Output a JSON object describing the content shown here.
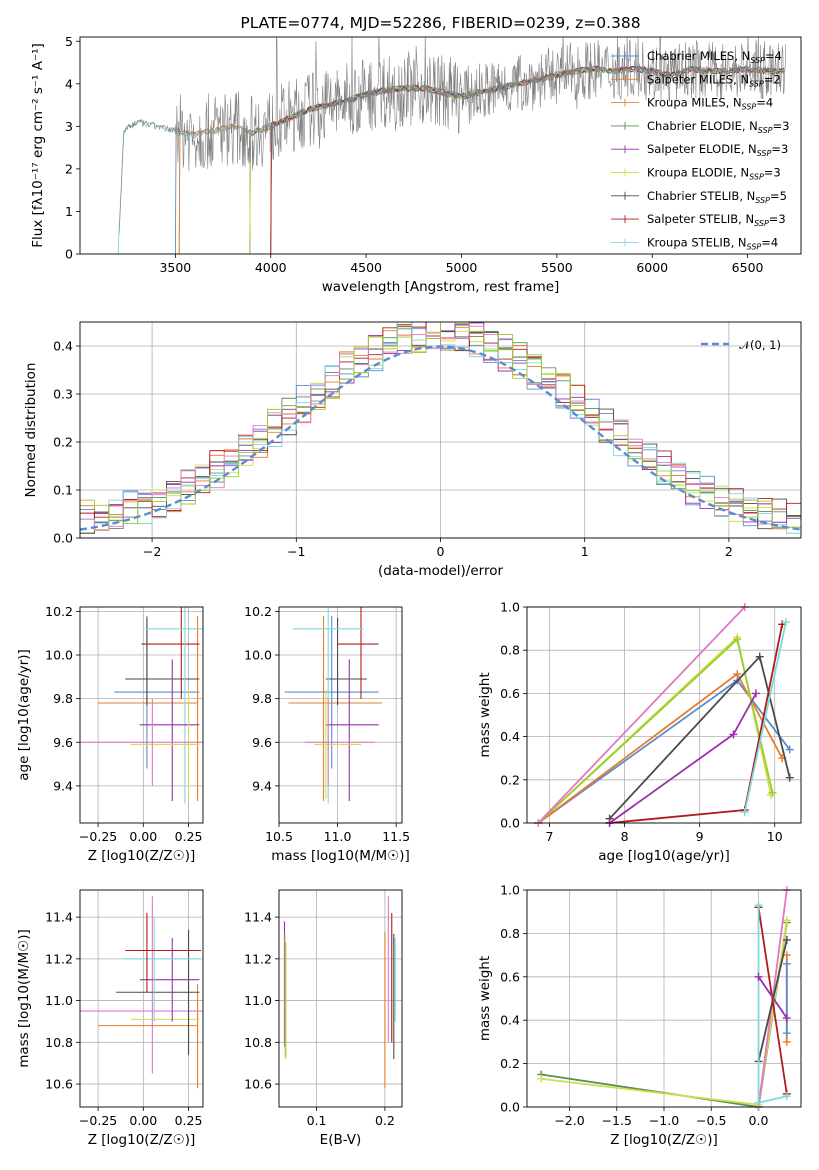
{
  "colors": {
    "Chabrier MILES": "#5b8bd0",
    "Salpeter MILES": "#e87d2b",
    "Kroupa MILES": "#e8832e",
    "Chabrier ELODIE": "#5a8f5a",
    "Salpeter ELODIE": "#9b2fae",
    "Kroupa ELODIE": "#cfe04a",
    "Chabrier STELIB": "#4a4a4a",
    "Salpeter STELIB": "#b01c1c",
    "Kroupa STELIB": "#7fd8dc",
    "extra_pink": "#e377c2",
    "extra_green": "#9acd32",
    "spectrum": "#7f7f7f",
    "normal_curve": "#5b8bd0",
    "grid": "#b0b0b0"
  },
  "chart_data": [
    {
      "id": "spectrum",
      "type": "line",
      "title": "PLATE=0774, MJD=52286, FIBERID=0239, z=0.388",
      "xlabel": "wavelength [Angstrom, rest frame]",
      "ylabel": "Flux [fλ10⁻¹⁷ erg cm⁻² s⁻¹ A⁻¹]",
      "xlim": [
        3000,
        6780
      ],
      "ylim": [
        0,
        5.1
      ],
      "xticks": [
        3500,
        4000,
        4500,
        5000,
        5500,
        6000,
        6500
      ],
      "yticks": [
        0,
        1,
        2,
        3,
        4,
        5
      ],
      "grid": false,
      "legend_placement": "right",
      "legend": [
        {
          "label": "Chabrier MILES, N",
          "sub": "SSP",
          "suffix": "=4",
          "series": "Chabrier MILES"
        },
        {
          "label": "Salpeter MILES, N",
          "sub": "SSP",
          "suffix": "=2",
          "series": "Salpeter MILES"
        },
        {
          "label": "Kroupa MILES, N",
          "sub": "SSP",
          "suffix": "=4",
          "series": "Kroupa MILES"
        },
        {
          "label": "Chabrier ELODIE, N",
          "sub": "SSP",
          "suffix": "=3",
          "series": "Chabrier ELODIE"
        },
        {
          "label": "Salpeter ELODIE, N",
          "sub": "SSP",
          "suffix": "=3",
          "series": "Salpeter ELODIE"
        },
        {
          "label": "Kroupa ELODIE, N",
          "sub": "SSP",
          "suffix": "=3",
          "series": "Kroupa ELODIE"
        },
        {
          "label": "Chabrier STELIB, N",
          "sub": "SSP",
          "suffix": "=5",
          "series": "Chabrier STELIB"
        },
        {
          "label": "Salpeter STELIB, N",
          "sub": "SSP",
          "suffix": "=3",
          "series": "Salpeter STELIB"
        },
        {
          "label": "Kroupa STELIB, N",
          "sub": "SSP",
          "suffix": "=4",
          "series": "Kroupa STELIB"
        }
      ],
      "data_continuum": {
        "x": [
          3200,
          3230,
          3300,
          3400,
          3500,
          3600,
          3700,
          3800,
          3900,
          4000,
          4100,
          4200,
          4300,
          4400,
          4500,
          4600,
          4700,
          4800,
          4900,
          5000,
          5100,
          5200,
          5300,
          5400,
          5500,
          5600,
          5700,
          5800,
          5900,
          6000,
          6100,
          6200,
          6300,
          6400,
          6500,
          6600
        ],
        "y": [
          0,
          2.9,
          3.1,
          3.0,
          2.9,
          2.8,
          2.9,
          3.0,
          2.85,
          3.0,
          3.2,
          3.4,
          3.5,
          3.6,
          3.75,
          3.85,
          3.9,
          3.9,
          3.8,
          3.7,
          3.8,
          3.9,
          4.0,
          4.1,
          4.2,
          4.3,
          4.35,
          4.3,
          4.35,
          4.3,
          4.2,
          4.35,
          4.3,
          4.3,
          4.35,
          4.3
        ]
      },
      "series": [
        {
          "name": "Chabrier MILES",
          "start": 3500
        },
        {
          "name": "Salpeter MILES",
          "start": 3520
        },
        {
          "name": "Kroupa MILES",
          "start": 3520
        },
        {
          "name": "Chabrier ELODIE",
          "start": 3890
        },
        {
          "name": "Salpeter ELODIE",
          "start": 3890
        },
        {
          "name": "Kroupa ELODIE",
          "start": 3890
        },
        {
          "name": "Chabrier STELIB",
          "start": 4000
        },
        {
          "name": "Salpeter STELIB",
          "start": 4000
        },
        {
          "name": "Kroupa STELIB",
          "start": 3200
        }
      ]
    },
    {
      "id": "residuals",
      "type": "line",
      "xlabel": "(data-model)/error",
      "ylabel": "Normed distribution",
      "xlim": [
        -2.5,
        2.5
      ],
      "ylim": [
        0,
        0.45
      ],
      "xticks": [
        -2,
        -1,
        0,
        1,
        2
      ],
      "xticklabels": [
        "−2",
        "−1",
        "0",
        "1",
        "2"
      ],
      "yticks": [
        0.0,
        0.1,
        0.2,
        0.3,
        0.4
      ],
      "yticklabels": [
        "0.0",
        "0.1",
        "0.2",
        "0.3",
        "0.4"
      ],
      "grid": true,
      "legend_placement": "top-right",
      "legend": [
        {
          "label": "𝒩(0, 1)",
          "series": "normal"
        }
      ],
      "bin_width": 0.1,
      "bins_from": -2.5
    },
    {
      "id": "age-vs-Z",
      "type": "scatter",
      "xlabel": "Z [log10(Z/Z☉)]",
      "ylabel": "age  [log10(age/yr)]",
      "xlim": [
        -0.35,
        0.33
      ],
      "ylim": [
        9.23,
        10.22
      ],
      "xticks": [
        -0.25,
        0.0,
        0.25
      ],
      "xticklabels": [
        "−0.25",
        "0.00",
        "0.25"
      ],
      "yticks": [
        9.4,
        9.6,
        9.8,
        10.0,
        10.2
      ],
      "yticklabels": [
        "9.4",
        "9.6",
        "9.8",
        "10.0",
        "10.2"
      ],
      "grid": true,
      "points": [
        {
          "series": "Chabrier MILES",
          "x": 0.02,
          "xerr": [
            0.18,
            0.29
          ],
          "y": 9.83,
          "yerr": [
            0.35,
            0.35
          ]
        },
        {
          "series": "Salpeter MILES",
          "x": 0.3,
          "xerr": [
            0.55,
            0.0
          ],
          "y": 9.78,
          "yerr": [
            0.45,
            0.4
          ]
        },
        {
          "series": "Chabrier STELIB",
          "x": 0.02,
          "xerr": [
            0.12,
            0.29
          ],
          "y": 9.89,
          "yerr": [
            0.12,
            0.28
          ]
        },
        {
          "series": "Salpeter STELIB",
          "x": 0.21,
          "xerr": [
            0.22,
            0.1
          ],
          "y": 10.05,
          "yerr": [
            0.25,
            0.2
          ]
        },
        {
          "series": "Kroupa STELIB",
          "x": 0.23,
          "xerr": [
            0.22,
            0.1
          ],
          "y": 10.12,
          "yerr": [
            0.8,
            0.1
          ]
        },
        {
          "series": "Salpeter ELODIE",
          "x": 0.16,
          "xerr": [
            0.18,
            0.15
          ],
          "y": 9.68,
          "yerr": [
            0.35,
            0.3
          ]
        },
        {
          "series": "Kroupa ELODIE",
          "x": 0.25,
          "xerr": [
            0.32,
            0.06
          ],
          "y": 9.59,
          "yerr": [
            0.25,
            0.25
          ]
        },
        {
          "series": "extra_pink",
          "x": 0.05,
          "xerr": [
            0.4,
            0.28
          ],
          "y": 9.6,
          "yerr": [
            0.2,
            0.2
          ]
        }
      ]
    },
    {
      "id": "age-vs-mass",
      "type": "scatter",
      "xlabel": "mass [log10(M/M☉)]",
      "ylabel": "",
      "xlim": [
        10.5,
        11.55
      ],
      "ylim": [
        9.23,
        10.22
      ],
      "xticks": [
        10.5,
        11.0,
        11.5
      ],
      "xticklabels": [
        "10.5",
        "11.0",
        "11.5"
      ],
      "yticks": [
        9.4,
        9.6,
        9.8,
        10.0,
        10.2
      ],
      "yticklabels": [
        "9.4",
        "9.6",
        "9.8",
        "10.0",
        "10.2"
      ],
      "grid": true,
      "points": [
        {
          "series": "Chabrier MILES",
          "x": 10.95,
          "xerr": [
            0.4,
            0.4
          ],
          "y": 9.83,
          "yerr": [
            0.35,
            0.35
          ]
        },
        {
          "series": "Salpeter MILES",
          "x": 10.88,
          "xerr": [
            0.3,
            0.5
          ],
          "y": 9.78,
          "yerr": [
            0.45,
            0.4
          ]
        },
        {
          "series": "Chabrier STELIB",
          "x": 11.0,
          "xerr": [
            0.1,
            0.25
          ],
          "y": 9.89,
          "yerr": [
            0.12,
            0.28
          ]
        },
        {
          "series": "Salpeter STELIB",
          "x": 11.2,
          "xerr": [
            0.2,
            0.15
          ],
          "y": 10.05,
          "yerr": [
            0.25,
            0.2
          ]
        },
        {
          "series": "Kroupa STELIB",
          "x": 10.92,
          "xerr": [
            0.3,
            0.3
          ],
          "y": 10.12,
          "yerr": [
            0.8,
            0.1
          ]
        },
        {
          "series": "Salpeter ELODIE",
          "x": 11.1,
          "xerr": [
            0.2,
            0.25
          ],
          "y": 9.68,
          "yerr": [
            0.35,
            0.3
          ]
        },
        {
          "series": "Kroupa ELODIE",
          "x": 10.9,
          "xerr": [
            0.1,
            0.3
          ],
          "y": 9.59,
          "yerr": [
            0.25,
            0.25
          ]
        },
        {
          "series": "extra_pink",
          "x": 10.92,
          "xerr": [
            0.2,
            0.4
          ],
          "y": 9.6,
          "yerr": [
            0.2,
            0.2
          ]
        }
      ]
    },
    {
      "id": "massweight-vs-age",
      "type": "line",
      "xlabel": "age  [log10(age/yr)]",
      "ylabel": "mass weight",
      "xlim": [
        6.7,
        10.35
      ],
      "ylim": [
        0,
        1.0
      ],
      "xticks": [
        7,
        8,
        9,
        10
      ],
      "xticklabels": [
        "7",
        "8",
        "9",
        "10"
      ],
      "yticks": [
        0.0,
        0.2,
        0.4,
        0.6,
        0.8,
        1.0
      ],
      "yticklabels": [
        "0.0",
        "0.2",
        "0.4",
        "0.6",
        "0.8",
        "1.0"
      ],
      "grid": true,
      "series": [
        {
          "name": "Chabrier MILES",
          "x": [
            6.85,
            9.5,
            10.2
          ],
          "y": [
            0.0,
            0.66,
            0.34
          ]
        },
        {
          "name": "Salpeter MILES",
          "x": [
            6.85,
            9.5,
            10.1
          ],
          "y": [
            0.0,
            0.69,
            0.3
          ]
        },
        {
          "name": "Kroupa ELODIE",
          "x": [
            6.85,
            9.5,
            9.95
          ],
          "y": [
            0.0,
            0.86,
            0.13
          ]
        },
        {
          "name": "extra_green",
          "x": [
            6.85,
            9.5,
            9.97
          ],
          "y": [
            0.0,
            0.85,
            0.14
          ]
        },
        {
          "name": "extra_pink",
          "x": [
            6.85,
            9.6
          ],
          "y": [
            0.0,
            1.0
          ]
        },
        {
          "name": "Chabrier STELIB",
          "x": [
            7.8,
            9.8,
            10.2
          ],
          "y": [
            0.02,
            0.77,
            0.21
          ]
        },
        {
          "name": "Salpeter STELIB",
          "x": [
            7.8,
            9.6,
            10.1
          ],
          "y": [
            0.0,
            0.06,
            0.92
          ]
        },
        {
          "name": "Kroupa STELIB",
          "x": [
            9.6,
            10.15
          ],
          "y": [
            0.05,
            0.93
          ]
        },
        {
          "name": "Salpeter ELODIE",
          "x": [
            7.8,
            9.45,
            9.75
          ],
          "y": [
            0.0,
            0.41,
            0.6
          ]
        }
      ]
    },
    {
      "id": "mass-vs-Z",
      "type": "scatter",
      "xlabel": "Z [log10(Z/Z☉)]",
      "ylabel": "mass [log10(M/M☉)]",
      "xlim": [
        -0.35,
        0.33
      ],
      "ylim": [
        10.49,
        11.53
      ],
      "xticks": [
        -0.25,
        0.0,
        0.25
      ],
      "xticklabels": [
        "−0.25",
        "0.00",
        "0.25"
      ],
      "yticks": [
        10.6,
        10.8,
        11.0,
        11.2,
        11.4
      ],
      "yticklabels": [
        "10.6",
        "10.8",
        "11.0",
        "11.2",
        "11.4"
      ],
      "grid": true,
      "points": [
        {
          "series": "Salpeter MILES",
          "x": 0.3,
          "xerr": [
            0.55,
            0.0
          ],
          "y": 10.88,
          "yerr": [
            0.3,
            0.2
          ]
        },
        {
          "series": "extra_pink",
          "x": 0.05,
          "xerr": [
            0.4,
            0.28
          ],
          "y": 10.95,
          "yerr": [
            0.3,
            0.55
          ]
        },
        {
          "series": "Kroupa ELODIE",
          "x": 0.25,
          "xerr": [
            0.32,
            0.06
          ],
          "y": 10.91,
          "yerr": [
            0.15,
            0.4
          ]
        },
        {
          "series": "Chabrier STELIB",
          "x": 0.25,
          "xerr": [
            0.4,
            0.06
          ],
          "y": 11.04,
          "yerr": [
            0.3,
            0.3
          ]
        },
        {
          "series": "Salpeter ELODIE",
          "x": 0.16,
          "xerr": [
            0.18,
            0.15
          ],
          "y": 11.1,
          "yerr": [
            0.2,
            0.2
          ]
        },
        {
          "series": "Kroupa STELIB",
          "x": 0.06,
          "xerr": [
            0.17,
            0.25
          ],
          "y": 11.2,
          "yerr": [
            0.3,
            0.2
          ]
        },
        {
          "series": "Salpeter STELIB",
          "x": 0.02,
          "xerr": [
            0.12,
            0.3
          ],
          "y": 11.24,
          "yerr": [
            0.2,
            0.18
          ]
        }
      ]
    },
    {
      "id": "mass-vs-ebv",
      "type": "scatter",
      "xlabel": "E(B-V)",
      "ylabel": "",
      "xlim": [
        0.045,
        0.225
      ],
      "ylim": [
        10.49,
        11.53
      ],
      "xticks": [
        0.1,
        0.2
      ],
      "xticklabels": [
        "0.1",
        "0.2"
      ],
      "yticks": [
        10.6,
        10.8,
        11.0,
        11.2,
        11.4
      ],
      "yticklabels": [
        "10.6",
        "10.8",
        "11.0",
        "11.2",
        "11.4"
      ],
      "grid": true,
      "points": [
        {
          "series": "Salpeter ELODIE",
          "x": 0.053,
          "y": 11.08,
          "yerr": [
            0.3,
            0.3
          ]
        },
        {
          "series": "Kroupa ELODIE",
          "x": 0.054,
          "y": 11.02,
          "yerr": [
            0.3,
            0.3
          ]
        },
        {
          "series": "extra_green",
          "x": 0.055,
          "y": 10.98,
          "yerr": [
            0.25,
            0.3
          ]
        },
        {
          "series": "Salpeter MILES",
          "x": 0.2,
          "y": 10.88,
          "yerr": [
            0.3,
            0.45
          ]
        },
        {
          "series": "extra_pink",
          "x": 0.205,
          "y": 11.1,
          "yerr": [
            0.3,
            0.4
          ]
        },
        {
          "series": "Salpeter STELIB",
          "x": 0.21,
          "y": 11.1,
          "yerr": [
            0.3,
            0.32
          ]
        },
        {
          "series": "Chabrier STELIB",
          "x": 0.213,
          "y": 11.02,
          "yerr": [
            0.3,
            0.3
          ]
        },
        {
          "series": "Kroupa STELIB",
          "x": 0.215,
          "y": 11.0,
          "yerr": [
            0.1,
            0.3
          ]
        }
      ]
    },
    {
      "id": "massweight-vs-Z",
      "type": "line",
      "xlabel": "Z [log10(Z/Z☉)]",
      "ylabel": "mass weight",
      "xlim": [
        -2.45,
        0.45
      ],
      "ylim": [
        0,
        1.0
      ],
      "xticks": [
        -2.0,
        -1.5,
        -1.0,
        -0.5,
        0.0
      ],
      "xticklabels": [
        "−2.0",
        "−1.5",
        "−1.0",
        "−0.5",
        "0.0"
      ],
      "yticks": [
        0.0,
        0.2,
        0.4,
        0.6,
        0.8,
        1.0
      ],
      "yticklabels": [
        "0.0",
        "0.2",
        "0.4",
        "0.6",
        "0.8",
        "1.0"
      ],
      "grid": true,
      "series": [
        {
          "name": "Chabrier ELODIE",
          "x": [
            -2.3,
            0.0,
            0.3
          ],
          "y": [
            0.15,
            0.0,
            0.85
          ]
        },
        {
          "name": "Kroupa ELODIE",
          "x": [
            -2.3,
            0.0,
            0.3
          ],
          "y": [
            0.13,
            0.01,
            0.86
          ]
        },
        {
          "name": "extra_pink",
          "x": [
            0.0,
            0.3
          ],
          "y": [
            0.0,
            1.0
          ]
        },
        {
          "name": "Salpeter MILES",
          "x": [
            0.3,
            0.3
          ],
          "y": [
            0.3,
            0.7
          ]
        },
        {
          "name": "Chabrier MILES",
          "x": [
            0.3,
            0.3
          ],
          "y": [
            0.34,
            0.66
          ]
        },
        {
          "name": "Chabrier STELIB",
          "x": [
            0.0,
            0.3
          ],
          "y": [
            0.21,
            0.77
          ]
        },
        {
          "name": "Salpeter STELIB",
          "x": [
            0.0,
            0.3
          ],
          "y": [
            0.92,
            0.06
          ]
        },
        {
          "name": "Kroupa STELIB",
          "x": [
            0.0,
            0.0,
            0.3
          ],
          "y": [
            0.93,
            0.02,
            0.05
          ]
        },
        {
          "name": "Salpeter ELODIE",
          "x": [
            0.0,
            0.3
          ],
          "y": [
            0.6,
            0.41
          ]
        }
      ]
    }
  ]
}
